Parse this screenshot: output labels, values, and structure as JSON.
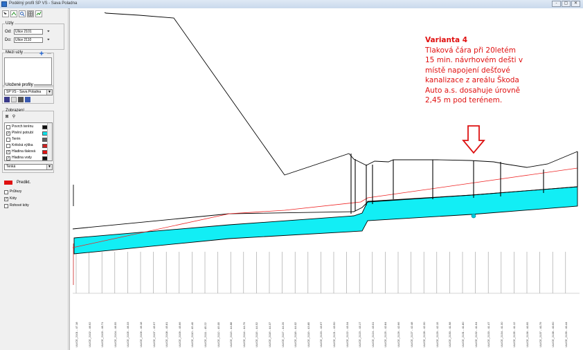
{
  "window": {
    "title": "Podélný profil SP VS - Sava Poladna",
    "controls": [
      "-",
      "▢",
      "✕"
    ]
  },
  "sidebar": {
    "toolbar_icons": [
      "pointer-icon",
      "measure-icon",
      "zoom-icon",
      "grid-icon",
      "chart-icon"
    ],
    "group_uzly": {
      "title": "Uzly",
      "od_label": "Od:",
      "od_value": "Ulice 2101",
      "do_label": "Do:",
      "do_value": "Ulice 2110"
    },
    "group_mezi": {
      "title": "Mezi uzly",
      "add_button": "+",
      "remove_button": "—"
    },
    "group_profily": {
      "title": "Uložené profily",
      "selected": "SP VS - Sava Poladna"
    },
    "group_zobrazeni": {
      "title": "Zobrazení"
    },
    "layers": [
      {
        "label": "Povrch terénu",
        "checked": false,
        "color": "#101010"
      },
      {
        "label": "Plnění potrubí",
        "checked": true,
        "color": "#12e0e8"
      },
      {
        "label": "Terén",
        "checked": false,
        "color": "#606060"
      },
      {
        "label": "Kritická výška",
        "checked": false,
        "color": "#cc2222"
      },
      {
        "label": "Hladina tlaková",
        "checked": true,
        "color": "#dd1111"
      },
      {
        "label": "Hladina vody",
        "checked": true,
        "color": "#111111"
      }
    ],
    "line_style": "Tenká",
    "predict_label": "Predikt.",
    "predict_color": "#e01010",
    "options": [
      {
        "label": "Průřezy",
        "checked": false
      },
      {
        "label": "Kóty",
        "checked": true
      },
      {
        "label": "Rohové kóty",
        "checked": false
      }
    ]
  },
  "annotation": {
    "title": "Varianta 4",
    "lines": [
      "Tlaková čára při 20letém",
      "15 min. návrhovém dešti v",
      "místě napojení dešťové",
      "kanalizace z areálu Škoda",
      "Auto a.s. dosahuje úrovně",
      "2,45 m pod terénem."
    ],
    "color": "#e01010"
  },
  "profile": {
    "colors": {
      "pipe_fill": "#12eef5",
      "pressure_line": "#ee2222",
      "terrain": "#000000",
      "ticks": "#9a9a9a",
      "arrow": "#dd1111"
    },
    "node_labels": [
      "ULICE_2101 - 47.18",
      "ULICE_2102 - 46.92",
      "ULICE_2103 - 46.71",
      "ULICE_2104 - 46.55",
      "ULICE_2105 - 46.33",
      "ULICE_2106 - 46.18",
      "ULICE_2107 - 45.97",
      "ULICE_2108 - 45.81",
      "ULICE_2109 - 45.66",
      "ULICE_2110 - 45.40",
      "ULICE_2111 - 45.22",
      "ULICE_2112 - 45.05",
      "ULICE_2113 - 44.88",
      "ULICE_2114 - 44.70",
      "ULICE_2115 - 44.52",
      "ULICE_2116 - 44.37",
      "ULICE_2117 - 44.20",
      "ULICE_2118 - 44.02",
      "ULICE_2119 - 43.85",
      "ULICE_2120 - 43.67",
      "ULICE_2121 - 43.50",
      "ULICE_2122 - 43.34",
      "ULICE_2123 - 43.17",
      "ULICE_2124 - 43.01",
      "ULICE_2125 - 42.84",
      "ULICE_2126 - 42.66",
      "ULICE_2127 - 42.48",
      "ULICE_2128 - 42.30",
      "ULICE_2129 - 42.15",
      "ULICE_2130 - 41.98",
      "ULICE_2131 - 41.80",
      "ULICE_2132 - 41.64",
      "ULICE_2133 - 41.47",
      "ULICE_2134 - 41.30",
      "ULICE_2135 - 41.12",
      "ULICE_2136 - 40.95",
      "ULICE_2137 - 40.79",
      "ULICE_2138 - 40.60",
      "ULICE_2139 - 40.44"
    ]
  }
}
